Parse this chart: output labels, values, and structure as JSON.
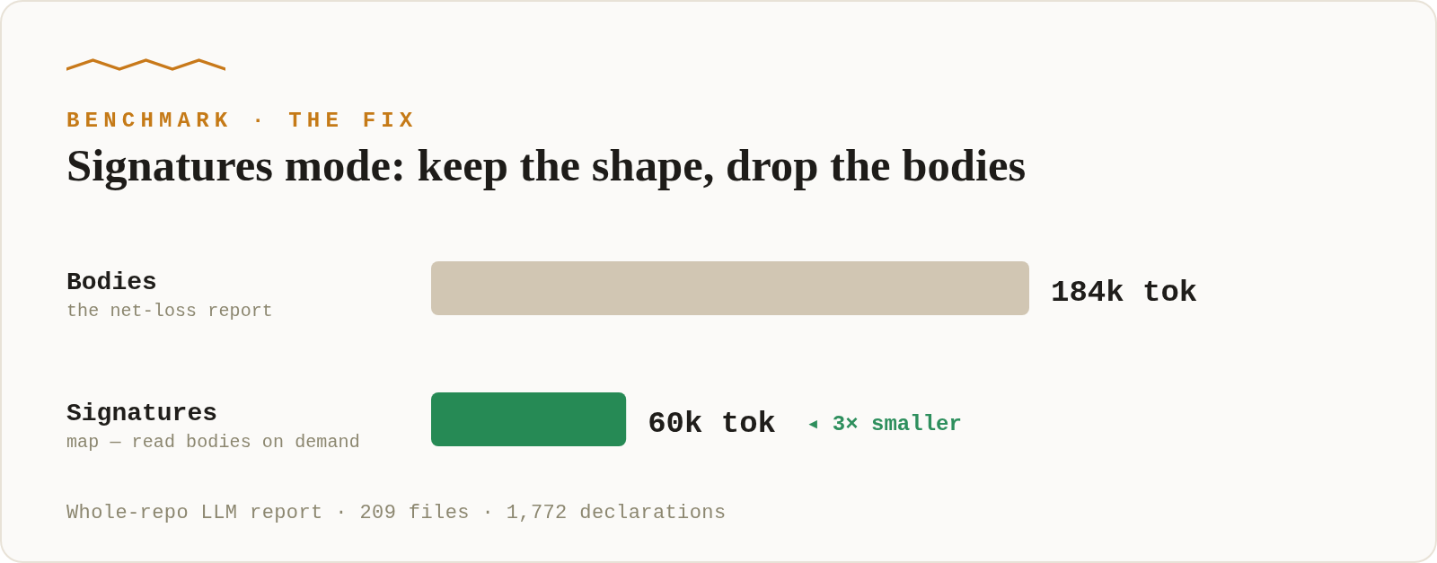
{
  "chart_data": {
    "type": "bar",
    "orientation": "horizontal",
    "subtitle": "BENCHMARK · THE FIX",
    "title": "Signatures mode: keep the shape, drop the bodies",
    "categories": [
      "Bodies",
      "Signatures"
    ],
    "values": [
      184,
      60
    ],
    "value_labels": [
      "184k tok",
      "60k tok"
    ],
    "colors": [
      "#d1c6b3",
      "#268a55"
    ],
    "annotations": [
      "the net-loss report",
      "map — read bodies on demand",
      "◂ 3× smaller",
      "Whole-repo LLM report · 209 files · 1,772 declarations"
    ],
    "tick_labels": "y"
  }
}
